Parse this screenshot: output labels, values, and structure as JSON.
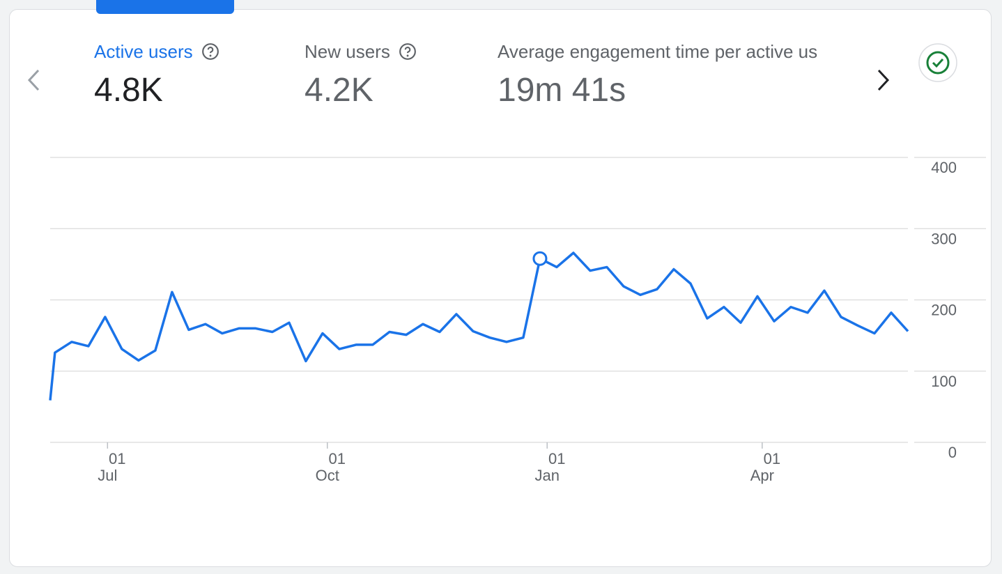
{
  "metrics": [
    {
      "label": "Active users",
      "value": "4.8K"
    },
    {
      "label": "New users",
      "value": "4.2K"
    },
    {
      "label": "Average engagement time per active us",
      "value": "19m 41s"
    }
  ],
  "chart_data": {
    "type": "line",
    "x": [
      0,
      2,
      9,
      16,
      23,
      30,
      37,
      44,
      51,
      58,
      65,
      72,
      79,
      86,
      93,
      100,
      107,
      114,
      121,
      128,
      135,
      142,
      149,
      156,
      163,
      170,
      177,
      184,
      191,
      198,
      205,
      212,
      219,
      226,
      233,
      240,
      247,
      254,
      261,
      268,
      275,
      282,
      289,
      296,
      303,
      310,
      317,
      324,
      331,
      338,
      345,
      352,
      359
    ],
    "series": [
      {
        "name": "Active users",
        "color": "#1a73e8",
        "values": [
          59,
          126,
          141,
          135,
          176,
          131,
          115,
          129,
          211,
          158,
          166,
          153,
          160,
          160,
          155,
          168,
          114,
          153,
          131,
          137,
          137,
          155,
          151,
          166,
          155,
          180,
          156,
          147,
          141,
          147,
          258,
          246,
          266,
          241,
          246,
          219,
          207,
          215,
          243,
          223,
          174,
          190,
          168,
          205,
          170,
          190,
          182,
          213,
          176,
          164,
          153,
          182,
          156
        ]
      }
    ],
    "marker_index": 30,
    "xlim": [
      0,
      359
    ],
    "xticks": [
      {
        "value": 24,
        "label": "01 Jul"
      },
      {
        "value": 116,
        "label": "01 Oct"
      },
      {
        "value": 208,
        "label": "01 Jan"
      },
      {
        "value": 298,
        "label": "01 Apr"
      }
    ],
    "ylim": [
      0,
      400
    ],
    "yticks": [
      0,
      100,
      200,
      300,
      400
    ],
    "grid": true
  }
}
